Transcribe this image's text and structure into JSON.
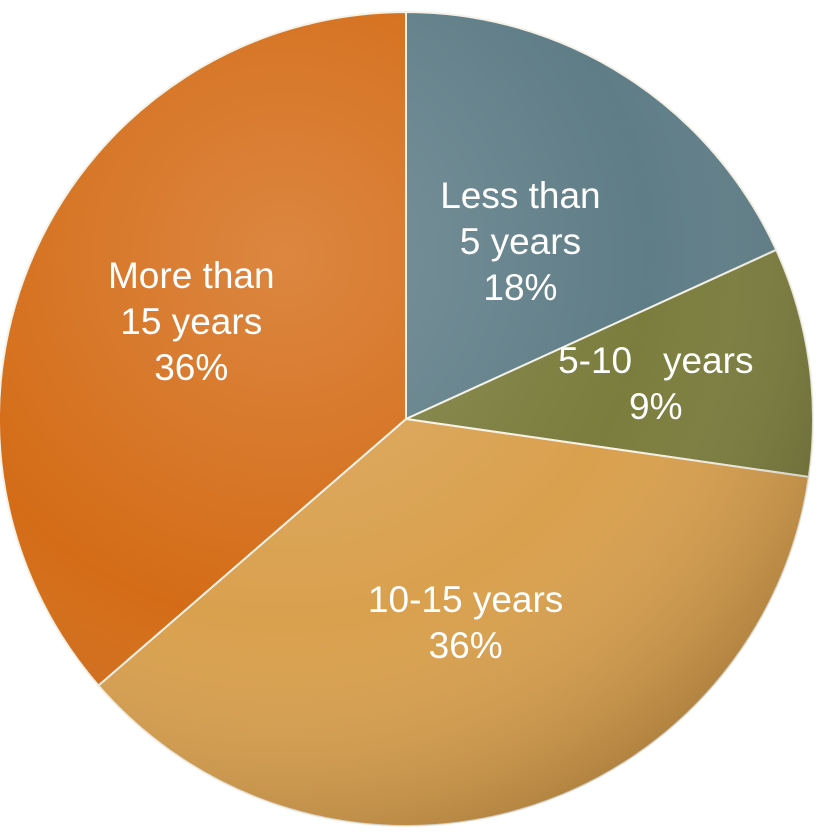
{
  "chart_data": {
    "type": "pie",
    "title": "",
    "slices": [
      {
        "label_lines": [
          "Less than",
          "5 years"
        ],
        "percent_label": "18%",
        "value": 18,
        "color": "#5f7d87"
      },
      {
        "label_lines": [
          "5-10   years"
        ],
        "percent_label": "9%",
        "value": 9,
        "color": "#7b7d3d"
      },
      {
        "label_lines": [
          "10-15 years"
        ],
        "percent_label": "36%",
        "value": 36,
        "color": "#d9a04e"
      },
      {
        "label_lines": [
          "More than",
          "15 years"
        ],
        "percent_label": "36%",
        "value": 36,
        "color": "#d46c17"
      }
    ],
    "start_angle": "12 o'clock",
    "direction": "clockwise",
    "legend": "none"
  }
}
